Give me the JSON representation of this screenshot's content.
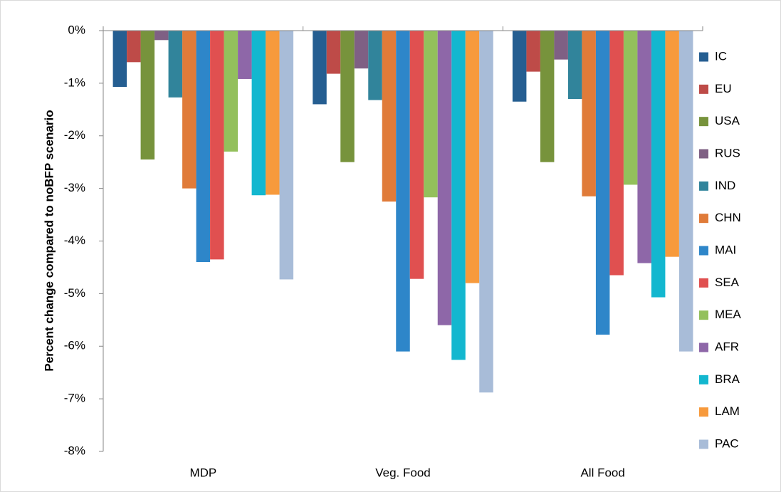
{
  "chart_data": {
    "type": "bar",
    "y_label": "Percent change compared to noBFP scenario",
    "categories": [
      "MDP",
      "Veg. Food",
      "All Food"
    ],
    "series": [
      {
        "name": "IC",
        "color": "#255e91",
        "values": [
          -1.07,
          -1.4,
          -1.35
        ]
      },
      {
        "name": "EU",
        "color": "#be4b48",
        "values": [
          -0.6,
          -0.82,
          -0.78
        ]
      },
      {
        "name": "USA",
        "color": "#77933c",
        "values": [
          -2.45,
          -2.5,
          -2.5
        ]
      },
      {
        "name": "RUS",
        "color": "#7f6084",
        "values": [
          -0.18,
          -0.72,
          -0.55
        ]
      },
      {
        "name": "IND",
        "color": "#31849b",
        "values": [
          -1.27,
          -1.32,
          -1.3
        ]
      },
      {
        "name": "CHN",
        "color": "#e07b39",
        "values": [
          -3.0,
          -3.25,
          -3.15
        ]
      },
      {
        "name": "MAI",
        "color": "#2e86c9",
        "values": [
          -4.4,
          -6.1,
          -5.78
        ]
      },
      {
        "name": "SEA",
        "color": "#e05050",
        "values": [
          -4.35,
          -4.72,
          -4.65
        ]
      },
      {
        "name": "MEA",
        "color": "#93c05c",
        "values": [
          -2.3,
          -3.17,
          -2.93
        ]
      },
      {
        "name": "AFR",
        "color": "#8e67a8",
        "values": [
          -0.92,
          -5.6,
          -4.42
        ]
      },
      {
        "name": "BRA",
        "color": "#13b7cf",
        "values": [
          -3.13,
          -6.26,
          -5.07
        ]
      },
      {
        "name": "LAM",
        "color": "#f79a3c",
        "values": [
          -3.12,
          -4.8,
          -4.3
        ]
      },
      {
        "name": "PAC",
        "color": "#a8bcd8",
        "values": [
          -4.73,
          -6.88,
          -6.1
        ]
      }
    ],
    "ylim": [
      -8,
      0
    ],
    "yticks": [
      {
        "value": 0,
        "label": "0%"
      },
      {
        "value": -1,
        "label": "-1%"
      },
      {
        "value": -2,
        "label": "-2%"
      },
      {
        "value": -3,
        "label": "-3%"
      },
      {
        "value": -4,
        "label": "-4%"
      },
      {
        "value": -5,
        "label": "-5%"
      },
      {
        "value": -6,
        "label": "-6%"
      },
      {
        "value": -7,
        "label": "-7%"
      },
      {
        "value": -8,
        "label": "-8%"
      }
    ],
    "grid": false,
    "legend": "right"
  }
}
